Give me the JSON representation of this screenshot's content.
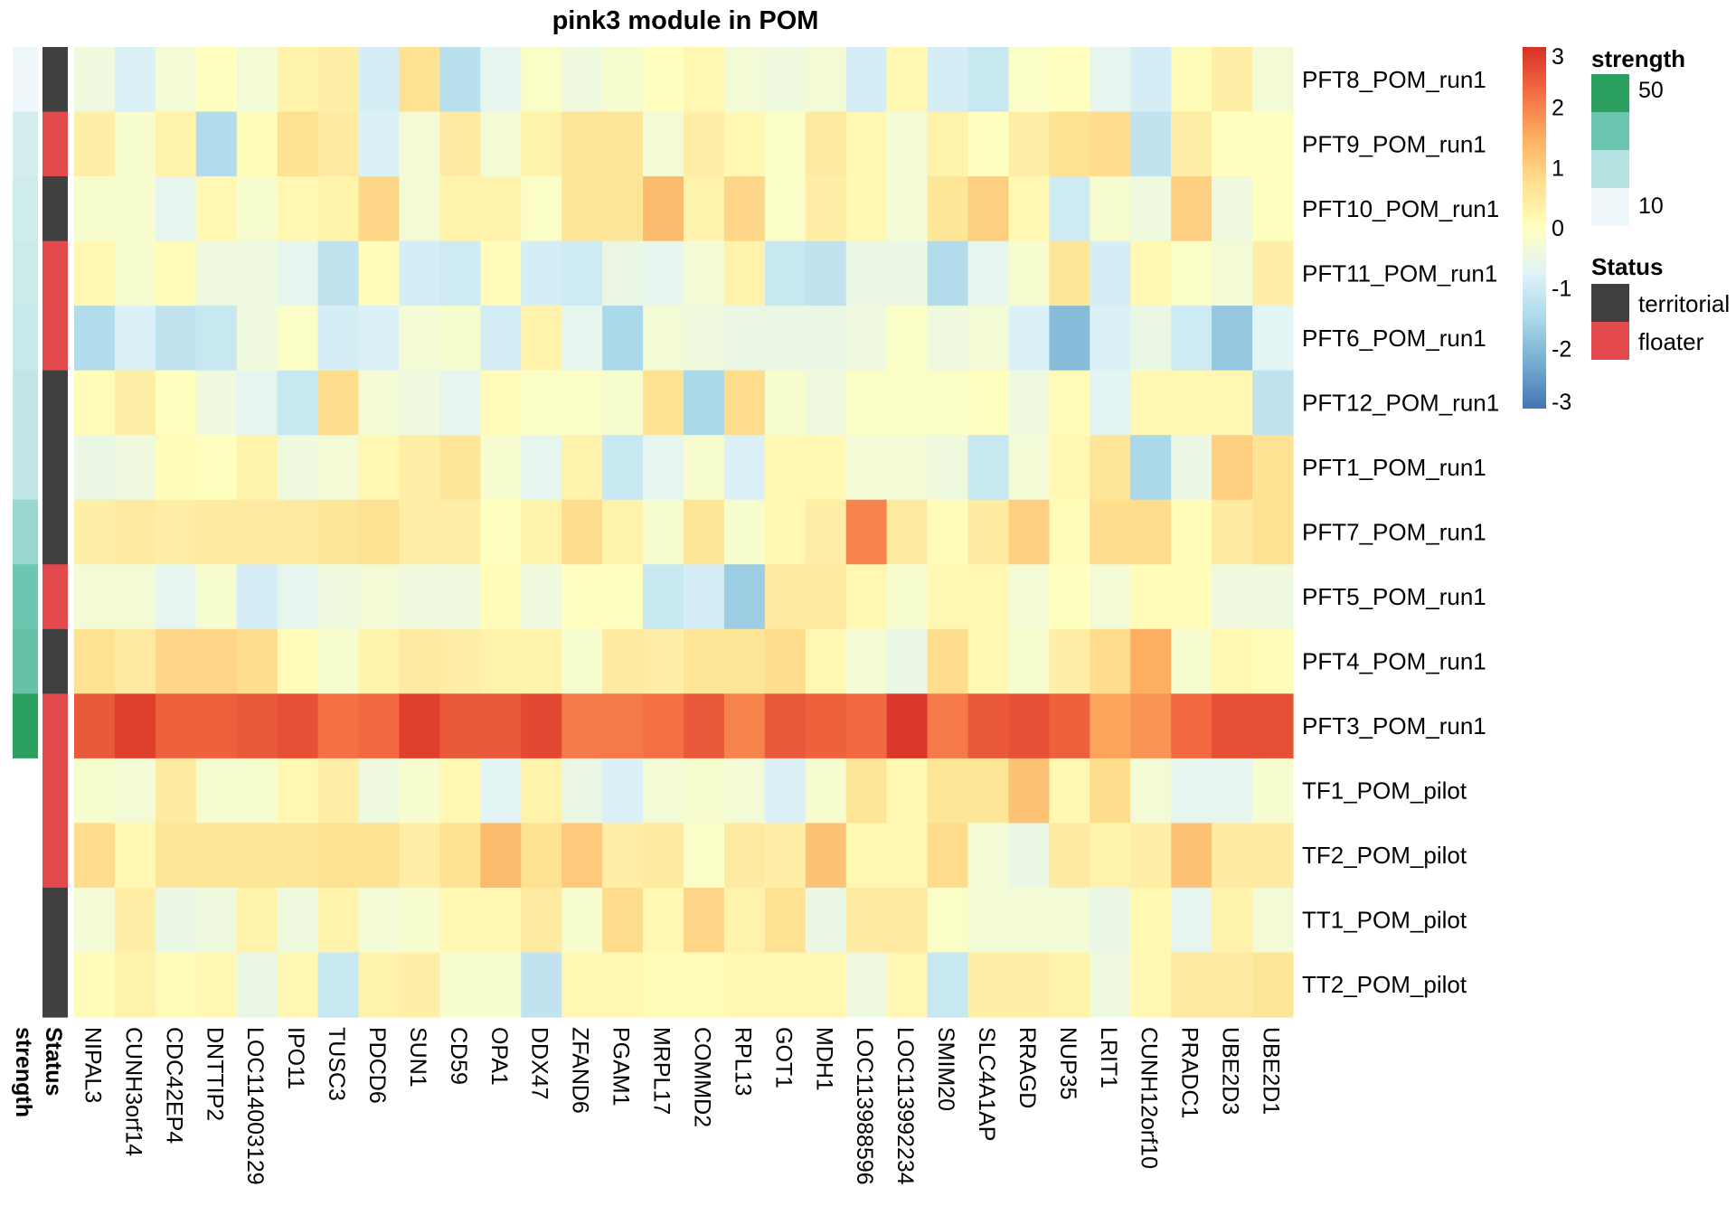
{
  "chart_data": {
    "type": "heatmap",
    "title": "pink3 module in POM",
    "columns": [
      "NIPAL3",
      "CUNH3orf14",
      "CDC42EP4",
      "DNTTIP2",
      "LOC114003129",
      "IPO11",
      "TUSC3",
      "PDCD6",
      "SUN1",
      "CD59",
      "OPA1",
      "DDX47",
      "ZFAND6",
      "PGAM1",
      "MRPL17",
      "COMMD2",
      "RPL13",
      "GOT1",
      "MDH1",
      "LOC113988596",
      "LOC113992234",
      "SMIM20",
      "SLC4A1AP",
      "RRAGD",
      "NUP35",
      "LRIT1",
      "CUNH12orf10",
      "PRADC1",
      "UBE2D3",
      "UBE2D1"
    ],
    "rows": [
      "PFT8_POM_run1",
      "PFT9_POM_run1",
      "PFT10_POM_run1",
      "PFT11_POM_run1",
      "PFT6_POM_run1",
      "PFT12_POM_run1",
      "PFT1_POM_run1",
      "PFT7_POM_run1",
      "PFT5_POM_run1",
      "PFT4_POM_run1",
      "PFT3_POM_run1",
      "TF1_POM_pilot",
      "TF2_POM_pilot",
      "TT1_POM_pilot",
      "TT2_POM_pilot"
    ],
    "values": [
      [
        -0.4,
        -0.8,
        -0.3,
        0.0,
        -0.3,
        0.3,
        0.4,
        -0.9,
        0.7,
        -1.3,
        -0.6,
        -0.1,
        -0.4,
        -0.2,
        0.0,
        0.2,
        -0.3,
        -0.4,
        -0.3,
        -0.9,
        0.2,
        -0.9,
        -1.1,
        -0.1,
        0.0,
        -0.6,
        -0.9,
        0.1,
        0.4,
        -0.3
      ],
      [
        0.4,
        -0.2,
        0.3,
        -1.4,
        0.1,
        0.7,
        0.5,
        -0.8,
        -0.3,
        0.5,
        -0.3,
        0.3,
        0.6,
        0.6,
        -0.3,
        0.4,
        0.2,
        -0.1,
        0.5,
        0.2,
        -0.3,
        0.3,
        0.0,
        0.4,
        0.7,
        0.8,
        -1.2,
        0.4,
        0.0,
        0.0
      ],
      [
        -0.2,
        -0.2,
        -0.6,
        0.2,
        -0.2,
        0.2,
        0.3,
        0.9,
        -0.3,
        0.3,
        0.3,
        -0.1,
        0.6,
        0.6,
        1.3,
        0.3,
        0.9,
        -0.1,
        0.4,
        0.2,
        -0.3,
        0.6,
        1.0,
        0.2,
        -1.0,
        -0.2,
        -0.4,
        1.0,
        -0.4,
        0.0
      ],
      [
        0.2,
        -0.2,
        0.1,
        -0.4,
        -0.4,
        -0.6,
        -1.2,
        0.1,
        -0.9,
        -1.0,
        0.1,
        -0.9,
        -1.0,
        -0.5,
        -0.6,
        -0.3,
        0.3,
        -1.1,
        -1.2,
        -0.5,
        -0.5,
        -1.4,
        -0.6,
        -0.2,
        0.6,
        -0.9,
        0.2,
        -0.1,
        -0.3,
        0.4
      ],
      [
        -1.4,
        -0.8,
        -1.2,
        -1.1,
        -0.4,
        -0.1,
        -0.9,
        -0.8,
        -0.3,
        -0.2,
        -0.9,
        0.3,
        -0.6,
        -1.5,
        -0.3,
        -0.4,
        -0.5,
        -0.5,
        -0.5,
        -0.4,
        -0.1,
        -0.4,
        -0.3,
        -0.8,
        -2.0,
        -0.8,
        -0.5,
        -1.0,
        -1.8,
        -0.7
      ],
      [
        0.1,
        0.4,
        0.0,
        -0.4,
        -0.6,
        -1.1,
        0.8,
        -0.3,
        -0.4,
        -0.6,
        0.1,
        -0.1,
        -0.1,
        -0.2,
        0.7,
        -1.5,
        0.8,
        -0.2,
        -0.4,
        -0.1,
        -0.1,
        -0.1,
        0.0,
        -0.4,
        0.1,
        -0.7,
        0.2,
        0.2,
        0.2,
        -1.2
      ],
      [
        -0.5,
        -0.4,
        0.1,
        0.0,
        0.3,
        -0.4,
        -0.3,
        0.2,
        0.4,
        0.6,
        -0.2,
        -0.6,
        0.3,
        -1.1,
        -0.6,
        -0.2,
        -0.8,
        0.2,
        0.2,
        -0.3,
        -0.3,
        -0.4,
        -1.1,
        -0.3,
        0.2,
        0.6,
        -1.5,
        -0.5,
        1.0,
        0.7
      ],
      [
        0.4,
        0.5,
        0.4,
        0.5,
        0.5,
        0.5,
        0.6,
        0.7,
        0.4,
        0.4,
        0.0,
        0.3,
        0.8,
        0.3,
        -0.2,
        0.6,
        -0.2,
        0.2,
        0.4,
        2.0,
        0.5,
        0.1,
        0.5,
        1.0,
        0.1,
        0.8,
        0.8,
        0.1,
        0.5,
        0.7
      ],
      [
        -0.3,
        -0.3,
        -0.6,
        -0.2,
        -0.9,
        -0.6,
        -0.4,
        -0.3,
        -0.4,
        -0.4,
        0.1,
        -0.4,
        0.0,
        0.0,
        -1.1,
        -0.9,
        -1.7,
        0.5,
        0.5,
        0.2,
        -0.2,
        0.2,
        0.2,
        -0.3,
        0.0,
        -0.3,
        0.1,
        0.1,
        -0.4,
        -0.4
      ],
      [
        0.7,
        0.5,
        0.9,
        0.9,
        0.8,
        0.1,
        -0.2,
        0.3,
        0.5,
        0.4,
        0.3,
        0.3,
        -0.2,
        0.5,
        0.4,
        0.6,
        0.6,
        0.8,
        0.2,
        -0.3,
        -0.5,
        0.8,
        0.2,
        -0.2,
        0.4,
        0.8,
        1.5,
        -0.2,
        0.2,
        0.1
      ],
      [
        2.5,
        2.8,
        2.4,
        2.4,
        2.5,
        2.6,
        2.2,
        2.3,
        2.8,
        2.5,
        2.5,
        2.7,
        2.1,
        2.1,
        2.2,
        2.5,
        2.0,
        2.5,
        2.4,
        2.3,
        2.9,
        2.1,
        2.5,
        2.6,
        2.4,
        1.6,
        1.8,
        2.3,
        2.6,
        2.6
      ],
      [
        -0.2,
        -0.3,
        0.5,
        -0.2,
        -0.2,
        0.2,
        0.4,
        -0.4,
        -0.2,
        0.2,
        -0.7,
        0.3,
        -0.5,
        -0.8,
        -0.3,
        -0.2,
        -0.3,
        -0.8,
        -0.2,
        0.6,
        0.2,
        0.6,
        0.6,
        1.2,
        0.2,
        0.8,
        -0.3,
        -0.6,
        -0.6,
        -0.2
      ],
      [
        0.8,
        0.2,
        0.6,
        0.6,
        0.6,
        0.6,
        0.7,
        0.7,
        0.4,
        0.7,
        1.3,
        0.7,
        1.1,
        0.4,
        0.5,
        -0.1,
        0.5,
        0.4,
        1.2,
        0.2,
        0.2,
        0.8,
        -0.3,
        -0.5,
        0.5,
        0.3,
        0.4,
        1.2,
        0.5,
        0.5
      ],
      [
        -0.3,
        0.4,
        -0.5,
        -0.4,
        0.3,
        -0.4,
        0.3,
        -0.3,
        -0.2,
        0.2,
        0.2,
        0.5,
        -0.2,
        0.8,
        0.2,
        0.9,
        0.3,
        0.7,
        -0.5,
        0.5,
        0.5,
        -0.1,
        -0.3,
        -0.3,
        -0.3,
        -0.5,
        0.2,
        -0.6,
        0.3,
        -0.3
      ],
      [
        0.1,
        0.3,
        0.1,
        0.2,
        -0.5,
        0.2,
        -1.1,
        0.3,
        0.4,
        -0.2,
        -0.2,
        -1.2,
        0.2,
        0.2,
        0.1,
        0.1,
        0.2,
        0.2,
        0.2,
        -0.4,
        0.2,
        -1.1,
        0.4,
        0.4,
        0.3,
        -0.4,
        0.2,
        0.5,
        0.5,
        0.6
      ]
    ],
    "color_scale": {
      "min": -3,
      "max": 3,
      "ticks": [
        3,
        2,
        1,
        0,
        -1,
        -2,
        -3
      ]
    },
    "row_annotations": {
      "Status": [
        "territorial",
        "floater",
        "territorial",
        "floater",
        "floater",
        "territorial",
        "territorial",
        "territorial",
        "floater",
        "territorial",
        "floater",
        "floater",
        "floater",
        "territorial",
        "territorial"
      ],
      "strength": [
        5,
        12,
        14,
        15,
        16,
        18,
        18,
        28,
        38,
        40,
        55,
        0,
        0,
        0,
        0
      ]
    },
    "legends": {
      "strength": {
        "title": "strength",
        "labels": [
          "50",
          "10"
        ],
        "colors": [
          "#2ba05e",
          "#6cc5ae",
          "#b3e2e0",
          "#eef7f9"
        ]
      },
      "status": {
        "title": "Status",
        "entries": [
          {
            "label": "territorial",
            "color": "#404040"
          },
          {
            "label": "floater",
            "color": "#e34a4e"
          }
        ]
      }
    },
    "annotation_labels": [
      "strength",
      "Status"
    ],
    "palette": [
      "#4575b4",
      "#74add1",
      "#abd9e9",
      "#e0f3f8",
      "#ffffbf",
      "#fee090",
      "#fdae61",
      "#f46d43",
      "#d73027"
    ]
  }
}
